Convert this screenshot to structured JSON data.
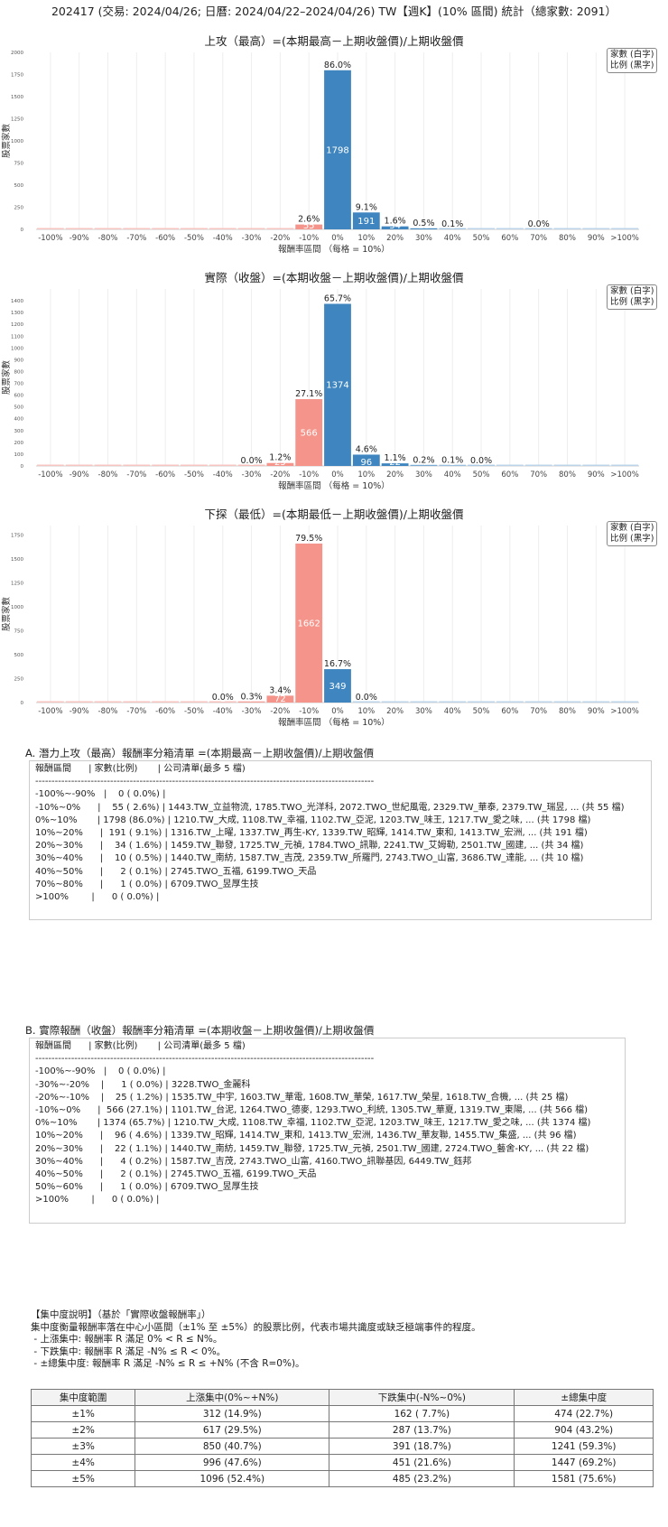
{
  "header": {
    "title": "202417 (交易: 2024/04/26; 日曆: 2024/04/22–2024/04/26) TW【週K】(10% 區間) 統計（總家數: 2091）"
  },
  "legend": {
    "line1": "家數 (白字)",
    "line2": "比例 (黑字)"
  },
  "colors": {
    "positive": "#3f86c0",
    "negative": "#f4948a",
    "positive_light": "#bcd4ea",
    "negative_light": "#f7c5c0"
  },
  "chart_data": [
    {
      "type": "bar",
      "title": "上攻（最高）=(本期最高－上期收盤價)/上期收盤價",
      "xlabel": "報酬率區間 （每格 = 10%）",
      "ylabel": "股票家數",
      "ylim": [
        0,
        2000
      ],
      "yticks": [
        0,
        250,
        500,
        750,
        1000,
        1250,
        1500,
        1750,
        2000
      ],
      "categories": [
        "-100%",
        "-90%",
        "-80%",
        "-70%",
        "-60%",
        "-50%",
        "-40%",
        "-30%",
        "-20%",
        "-10%",
        "0%",
        "10%",
        "20%",
        "30%",
        "40%",
        "50%",
        "60%",
        "70%",
        "80%",
        "90%",
        ">100%"
      ],
      "values": [
        0,
        0,
        0,
        0,
        0,
        0,
        0,
        0,
        0,
        55,
        1798,
        191,
        34,
        10,
        2,
        0,
        0,
        1,
        0,
        0,
        0
      ],
      "pct_labels": [
        "",
        "",
        "",
        "",
        "",
        "",
        "",
        "",
        "",
        "2.6%",
        "86.0%",
        "9.1%",
        "1.6%",
        "0.5%",
        "0.1%",
        "",
        "",
        "0.0%",
        "",
        "",
        ""
      ],
      "count_labels": [
        "",
        "",
        "",
        "",
        "",
        "",
        "",
        "",
        "",
        "55",
        "1798",
        "191",
        "34",
        "10",
        "2",
        "",
        "",
        "1",
        "",
        "",
        ""
      ]
    },
    {
      "type": "bar",
      "title": "實際（收盤）=(本期收盤－上期收盤價)/上期收盤價",
      "xlabel": "報酬率區間 （每格 = 10%）",
      "ylabel": "股票家數",
      "ylim": [
        0,
        1500
      ],
      "yticks": [
        0,
        100,
        200,
        300,
        400,
        500,
        600,
        700,
        800,
        900,
        1000,
        1100,
        1200,
        1300,
        1400
      ],
      "categories": [
        "-100%",
        "-90%",
        "-80%",
        "-70%",
        "-60%",
        "-50%",
        "-40%",
        "-30%",
        "-20%",
        "-10%",
        "0%",
        "10%",
        "20%",
        "30%",
        "40%",
        "50%",
        "60%",
        "70%",
        "80%",
        "90%",
        ">100%"
      ],
      "values": [
        0,
        0,
        0,
        0,
        0,
        0,
        0,
        1,
        25,
        566,
        1374,
        96,
        22,
        4,
        2,
        1,
        0,
        0,
        0,
        0,
        0
      ],
      "pct_labels": [
        "",
        "",
        "",
        "",
        "",
        "",
        "",
        "0.0%",
        "1.2%",
        "27.1%",
        "65.7%",
        "4.6%",
        "1.1%",
        "0.2%",
        "0.1%",
        "0.0%",
        "",
        "",
        "",
        "",
        ""
      ],
      "count_labels": [
        "",
        "",
        "",
        "",
        "",
        "",
        "",
        "1",
        "25",
        "566",
        "1374",
        "96",
        "22",
        "4",
        "2",
        "1",
        "",
        "",
        "",
        "",
        ""
      ]
    },
    {
      "type": "bar",
      "title": "下探（最低）=(本期最低－上期收盤價)/上期收盤價",
      "xlabel": "報酬率區間 （每格 = 10%）",
      "ylabel": "股票家數",
      "ylim": [
        0,
        1850
      ],
      "yticks": [
        0,
        250,
        500,
        750,
        1000,
        1250,
        1500,
        1750
      ],
      "categories": [
        "-100%",
        "-90%",
        "-80%",
        "-70%",
        "-60%",
        "-50%",
        "-40%",
        "-30%",
        "-20%",
        "-10%",
        "0%",
        "10%",
        "20%",
        "30%",
        "40%",
        "50%",
        "60%",
        "70%",
        "80%",
        "90%",
        ">100%"
      ],
      "values": [
        0,
        0,
        0,
        0,
        0,
        0,
        1,
        7,
        72,
        1662,
        349,
        0,
        0,
        0,
        0,
        0,
        0,
        0,
        0,
        0,
        0
      ],
      "pct_labels": [
        "",
        "",
        "",
        "",
        "",
        "",
        "0.0%",
        "0.3%",
        "3.4%",
        "79.5%",
        "16.7%",
        "0.0%",
        "",
        "",
        "",
        "",
        "",
        "",
        "",
        "",
        ""
      ],
      "count_labels": [
        "",
        "",
        "",
        "",
        "",
        "",
        "1",
        "7",
        "72",
        "1662",
        "349",
        "0",
        "",
        "",
        "",
        "",
        "",
        "",
        "",
        "",
        ""
      ]
    }
  ],
  "section_a": {
    "title": "A. 潛力上攻（最高）報酬率分箱清單 =(本期最高－上期收盤價)/上期收盤價",
    "lines": [
      "報酬區間      | 家數(比例)       | 公司清單(最多 5 檔)",
      "--------------------------------------------------------------------------------------------------------",
      "-100%~-90%   |    0 ( 0.0%) |",
      "-10%~0%      |    55 ( 2.6%) | 1443.TW_立益物流, 1785.TWO_光洋科, 2072.TWO_世紀風電, 2329.TW_華泰, 2379.TW_瑞昱, ... (共 55 檔)",
      "0%~10%       | 1798 (86.0%) | 1210.TW_大成, 1108.TW_幸福, 1102.TW_亞泥, 1203.TW_味王, 1217.TW_愛之味, ... (共 1798 檔)",
      "10%~20%      |  191 ( 9.1%) | 1316.TW_上曜, 1337.TW_再生-KY, 1339.TW_昭輝, 1414.TW_東和, 1413.TW_宏洲, ... (共 191 檔)",
      "20%~30%      |    34 ( 1.6%) | 1459.TW_聯發, 1725.TW_元禎, 1784.TWO_訊聯, 2241.TW_艾姆勒, 2501.TW_國建, ... (共 34 檔)",
      "30%~40%      |    10 ( 0.5%) | 1440.TW_南紡, 1587.TW_吉茂, 2359.TW_所羅門, 2743.TWO_山富, 3686.TW_達能, ... (共 10 檔)",
      "40%~50%      |      2 ( 0.1%) | 2745.TWO_五福, 6199.TWO_天品",
      "70%~80%      |      1 ( 0.0%) | 6709.TWO_昱厚生技",
      ">100%        |      0 ( 0.0%) |"
    ]
  },
  "section_b": {
    "title": "B. 實際報酬（收盤）報酬率分箱清單 =(本期收盤－上期收盤價)/上期收盤價",
    "lines": [
      "報酬區間      | 家數(比例)       | 公司清單(最多 5 檔)",
      "--------------------------------------------------------------------------------------------------------",
      "-100%~-90%   |    0 ( 0.0%) |",
      "-30%~-20%    |      1 ( 0.0%) | 3228.TWO_金麗科",
      "-20%~-10%    |    25 ( 1.2%) | 1535.TW_中宇, 1603.TW_華電, 1608.TW_華榮, 1617.TW_榮星, 1618.TW_合機, ... (共 25 檔)",
      "-10%~0%      |  566 (27.1%) | 1101.TW_台泥, 1264.TWO_德麥, 1293.TWO_利統, 1305.TW_華夏, 1319.TW_東陽, ... (共 566 檔)",
      "0%~10%       | 1374 (65.7%) | 1210.TW_大成, 1108.TW_幸福, 1102.TW_亞泥, 1203.TW_味王, 1217.TW_愛之味, ... (共 1374 檔)",
      "10%~20%      |    96 ( 4.6%) | 1339.TW_昭輝, 1414.TW_東和, 1413.TW_宏洲, 1436.TW_華友聯, 1455.TW_集盛, ... (共 96 檔)",
      "20%~30%      |    22 ( 1.1%) | 1440.TW_南紡, 1459.TW_聯發, 1725.TW_元禎, 2501.TW_國建, 2724.TWO_藝舍-KY, ... (共 22 檔)",
      "30%~40%      |      4 ( 0.2%) | 1587.TW_吉茂, 2743.TWO_山富, 4160.TWO_訊聯基因, 6449.TW_鈺邦",
      "40%~50%      |      2 ( 0.1%) | 2745.TWO_五福, 6199.TWO_天品",
      "50%~60%      |      1 ( 0.0%) | 6709.TWO_昱厚生技",
      ">100%        |      0 ( 0.0%) |"
    ]
  },
  "note": {
    "lines": [
      "【集中度說明】（基於「實際收盤報酬率」）",
      "集中度衡量報酬率落在中心小區間（±1% 至 ±5%）的股票比例，代表市場共識度或缺乏極端事件的程度。",
      " - 上漲集中: 報酬率 R 滿足 0% < R ≤ N%。",
      " - 下跌集中: 報酬率 R 滿足 -N% ≤ R < 0%。",
      " - ±總集中度: 報酬率 R 滿足 -N% ≤ R ≤ +N% (不含 R=0%)。"
    ]
  },
  "table": {
    "headers": [
      "集中度範圍",
      "上漲集中(0%~+N%)",
      "下跌集中(-N%~0%)",
      "±總集中度"
    ],
    "rows": [
      [
        "±1%",
        "312 (14.9%)",
        "162 ( 7.7%)",
        "474 (22.7%)"
      ],
      [
        "±2%",
        "617 (29.5%)",
        "287 (13.7%)",
        "904 (43.2%)"
      ],
      [
        "±3%",
        "850 (40.7%)",
        "391 (18.7%)",
        "1241 (59.3%)"
      ],
      [
        "±4%",
        "996 (47.6%)",
        "451 (21.6%)",
        "1447 (69.2%)"
      ],
      [
        "±5%",
        "1096 (52.4%)",
        "485 (23.2%)",
        "1581 (75.6%)"
      ]
    ]
  }
}
